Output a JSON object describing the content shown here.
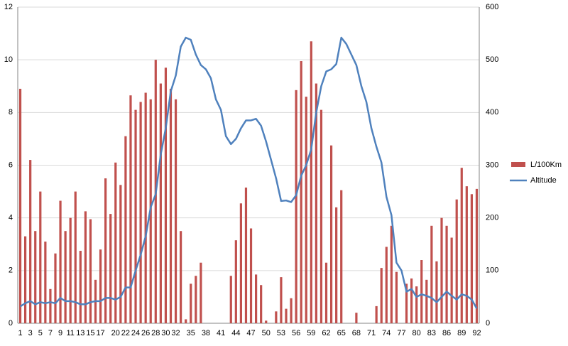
{
  "chart_data": {
    "type": "bar-line",
    "categories": [
      "1",
      null,
      "3",
      null,
      "5",
      null,
      "7",
      null,
      "9",
      null,
      "11",
      null,
      "13",
      null,
      "15",
      null,
      "17",
      null,
      null,
      "20",
      null,
      "22",
      null,
      "24",
      null,
      "26",
      null,
      "28",
      null,
      "30",
      null,
      "32",
      null,
      null,
      "35",
      null,
      null,
      "38",
      null,
      null,
      "41",
      null,
      null,
      "44",
      null,
      null,
      "47",
      null,
      null,
      "50",
      null,
      null,
      "53",
      null,
      null,
      "56",
      null,
      null,
      "59",
      null,
      null,
      "62",
      null,
      null,
      "65",
      null,
      null,
      "68",
      null,
      null,
      "71",
      null,
      null,
      "74",
      null,
      null,
      "77",
      null,
      null,
      "80",
      null,
      null,
      "83",
      null,
      null,
      "86",
      null,
      null,
      "89",
      null,
      null,
      "92"
    ],
    "series": [
      {
        "name": "L/100Km",
        "type": "bar",
        "color": "#c0504d",
        "values": [
          8.9,
          3.3,
          6.2,
          3.5,
          5.0,
          3.1,
          1.3,
          2.65,
          4.65,
          3.5,
          4.0,
          5.0,
          2.75,
          4.25,
          3.95,
          1.65,
          2.8,
          5.5,
          4.15,
          6.1,
          5.25,
          7.1,
          8.65,
          8.1,
          8.4,
          8.75,
          8.5,
          10.0,
          9.1,
          9.7,
          8.9,
          8.5,
          3.5,
          0.15,
          1.5,
          1.8,
          2.3,
          0,
          0,
          0,
          0,
          0,
          1.8,
          3.15,
          4.55,
          5.15,
          3.6,
          1.85,
          1.45,
          0.1,
          0,
          0.45,
          1.75,
          0.55,
          0.95,
          8.85,
          9.95,
          8.6,
          10.7,
          9.1,
          8.1,
          2.3,
          6.75,
          4.4,
          5.05,
          0,
          0,
          0.4,
          0,
          0,
          0,
          0.65,
          2.1,
          2.9,
          3.7,
          1.95,
          0,
          1.5,
          1.7,
          1.4,
          2.4,
          1.65,
          3.7,
          2.35,
          4.0,
          3.7,
          3.25,
          4.7,
          5.9,
          5.2,
          4.9,
          5.1
        ]
      },
      {
        "name": "Altitude",
        "type": "line",
        "axis": "y2",
        "color": "#4f81bd",
        "values": [
          32,
          38,
          42,
          36,
          40,
          38,
          40,
          38,
          48,
          42,
          42,
          40,
          36,
          36,
          40,
          42,
          42,
          48,
          48,
          45,
          50,
          68,
          68,
          100,
          130,
          165,
          220,
          245,
          320,
          370,
          440,
          470,
          525,
          542,
          538,
          510,
          490,
          482,
          465,
          425,
          405,
          355,
          340,
          350,
          370,
          385,
          385,
          388,
          375,
          345,
          310,
          275,
          232,
          233,
          230,
          243,
          280,
          300,
          330,
          400,
          450,
          478,
          482,
          492,
          542,
          530,
          510,
          490,
          450,
          420,
          370,
          335,
          305,
          240,
          205,
          115,
          100,
          60,
          65,
          50,
          55,
          52,
          48,
          40,
          50,
          60,
          52,
          45,
          55,
          52,
          45,
          28
        ]
      }
    ],
    "ylim": [
      0,
      12
    ],
    "yticks": [
      0,
      2,
      4,
      6,
      8,
      10,
      12
    ],
    "y2lim": [
      0,
      600
    ],
    "y2ticks": [
      0,
      100,
      200,
      300,
      400,
      500,
      600
    ],
    "grid": true,
    "legend": "right"
  }
}
